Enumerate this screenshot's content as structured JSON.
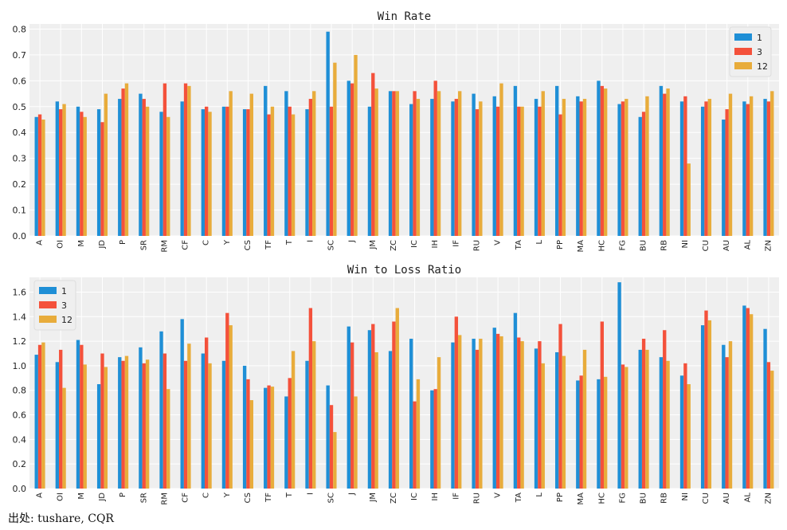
{
  "colors": {
    "panel_bg": "#efefef",
    "grid": "#ffffff",
    "series": [
      "#1f8fd6",
      "#f4513b",
      "#e8ac3b"
    ]
  },
  "source": "出处: tushare, CQR",
  "chart_data": [
    {
      "type": "bar",
      "title": "Win Rate",
      "xlabel": "",
      "ylabel": "",
      "ylim": [
        0,
        0.82
      ],
      "yticks": [
        "0.0",
        "0.1",
        "0.2",
        "0.3",
        "0.4",
        "0.5",
        "0.6",
        "0.7",
        "0.8"
      ],
      "grid": true,
      "legend_position": "top-right",
      "categories": [
        "A",
        "OI",
        "M",
        "JD",
        "P",
        "SR",
        "RM",
        "CF",
        "C",
        "Y",
        "CS",
        "TF",
        "T",
        "I",
        "SC",
        "J",
        "JM",
        "ZC",
        "IC",
        "IH",
        "IF",
        "RU",
        "V",
        "TA",
        "L",
        "PP",
        "MA",
        "HC",
        "FG",
        "BU",
        "RB",
        "NI",
        "CU",
        "AU",
        "AL",
        "ZN"
      ],
      "series": [
        {
          "name": "1",
          "values": [
            0.46,
            0.52,
            0.5,
            0.49,
            0.53,
            0.55,
            0.48,
            0.52,
            0.49,
            0.5,
            0.49,
            0.58,
            0.56,
            0.49,
            0.79,
            0.6,
            0.5,
            0.56,
            0.51,
            0.53,
            0.52,
            0.55,
            0.54,
            0.58,
            0.53,
            0.58,
            0.54,
            0.6,
            0.51,
            0.46,
            0.58,
            0.52,
            0.5,
            0.45,
            0.52,
            0.53
          ]
        },
        {
          "name": "3",
          "values": [
            0.47,
            0.49,
            0.48,
            0.44,
            0.57,
            0.53,
            0.59,
            0.59,
            0.5,
            0.5,
            0.49,
            0.47,
            0.5,
            0.53,
            0.5,
            0.59,
            0.63,
            0.56,
            0.56,
            0.6,
            0.53,
            0.49,
            0.5,
            0.5,
            0.5,
            0.47,
            0.52,
            0.58,
            0.52,
            0.48,
            0.55,
            0.54,
            0.52,
            0.49,
            0.51,
            0.52
          ]
        },
        {
          "name": "12",
          "values": [
            0.45,
            0.51,
            0.46,
            0.55,
            0.59,
            0.5,
            0.46,
            0.58,
            0.48,
            0.56,
            0.55,
            0.5,
            0.47,
            0.56,
            0.67,
            0.7,
            0.57,
            0.56,
            0.53,
            0.56,
            0.56,
            0.52,
            0.59,
            0.5,
            0.56,
            0.53,
            0.53,
            0.57,
            0.53,
            0.54,
            0.57,
            0.28,
            0.53,
            0.55,
            0.54,
            0.56
          ]
        }
      ]
    },
    {
      "type": "bar",
      "title": "Win to Loss Ratio",
      "xlabel": "",
      "ylabel": "",
      "ylim": [
        0,
        1.72
      ],
      "yticks": [
        "0.0",
        "0.2",
        "0.4",
        "0.6",
        "0.8",
        "1.0",
        "1.2",
        "1.4",
        "1.6"
      ],
      "grid": true,
      "legend_position": "top-left",
      "categories": [
        "A",
        "OI",
        "M",
        "JD",
        "P",
        "SR",
        "RM",
        "CF",
        "C",
        "Y",
        "CS",
        "TF",
        "T",
        "I",
        "SC",
        "J",
        "JM",
        "ZC",
        "IC",
        "IH",
        "IF",
        "RU",
        "V",
        "TA",
        "L",
        "PP",
        "MA",
        "HC",
        "FG",
        "BU",
        "RB",
        "NI",
        "CU",
        "AU",
        "AL",
        "ZN"
      ],
      "series": [
        {
          "name": "1",
          "values": [
            1.09,
            1.03,
            1.21,
            0.85,
            1.07,
            1.15,
            1.28,
            1.38,
            1.1,
            1.04,
            1.0,
            0.82,
            0.75,
            1.04,
            0.84,
            1.32,
            1.29,
            1.12,
            1.22,
            0.8,
            1.19,
            1.22,
            1.31,
            1.43,
            1.14,
            1.11,
            0.88,
            0.89,
            1.68,
            1.13,
            1.07,
            0.92,
            1.33,
            1.17,
            1.49,
            1.3
          ]
        },
        {
          "name": "3",
          "values": [
            1.17,
            1.13,
            1.17,
            1.1,
            1.04,
            1.02,
            1.1,
            1.04,
            1.23,
            1.43,
            0.89,
            0.84,
            0.9,
            1.47,
            0.68,
            1.19,
            1.34,
            1.36,
            0.71,
            0.81,
            1.4,
            1.13,
            1.26,
            1.23,
            1.2,
            1.34,
            0.92,
            1.36,
            1.01,
            1.22,
            1.29,
            1.02,
            1.45,
            1.07,
            1.47,
            1.03
          ]
        },
        {
          "name": "12",
          "values": [
            1.19,
            0.82,
            1.01,
            0.99,
            1.08,
            1.05,
            0.81,
            1.18,
            1.02,
            1.33,
            0.72,
            0.83,
            1.12,
            1.2,
            0.46,
            0.75,
            1.11,
            1.47,
            0.89,
            1.07,
            1.25,
            1.22,
            1.24,
            1.2,
            1.02,
            1.08,
            1.13,
            0.91,
            0.99,
            1.13,
            1.04,
            0.85,
            1.37,
            1.2,
            1.42,
            0.96
          ]
        }
      ]
    }
  ]
}
